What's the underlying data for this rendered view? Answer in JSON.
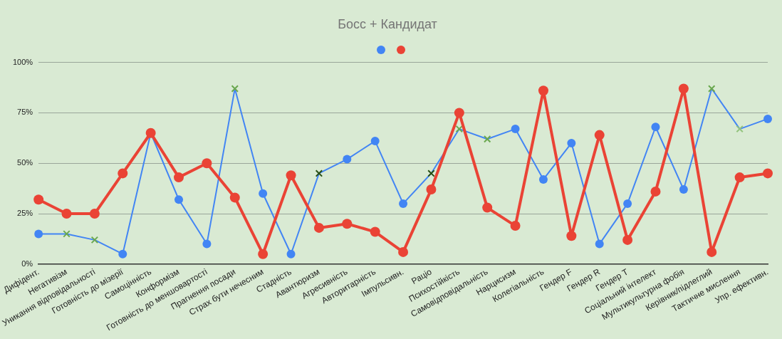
{
  "chart_data": {
    "type": "line",
    "title": "Босс + Кандидат",
    "categories": [
      "Дифідент.",
      "Негативізм",
      "Уникання відповідальності",
      "Готовність до мізерії",
      "Самоцінність",
      "Конформізм",
      "Готовність до меншовартості",
      "Прагнення посади",
      "Страх бути нечесним",
      "Стадність",
      "Авантюризм",
      "Агресивність",
      "Авторитарність",
      "Імпульсивн.",
      "Раціо",
      "Психостійкість",
      "Самовідповідальність",
      "Нарцисизм",
      "Колегіальність",
      "Гендер F",
      "Гендер R",
      "Гендер T",
      "Соціальний інтелект",
      "Мультикультурна фобія",
      "Керівник/підлеглий",
      "Тактичне мислення",
      "Упр. ефективн."
    ],
    "series": [
      {
        "color": "#4285f4",
        "values": [
          15,
          15,
          12,
          5,
          65,
          32,
          10,
          87,
          35,
          5,
          45,
          52,
          61,
          30,
          45,
          67,
          62,
          67,
          42,
          60,
          10,
          30,
          68,
          37,
          87,
          67,
          72
        ],
        "colors": [
          "#4285f4",
          "#6aa84f",
          "#6aa84f",
          "#4285f4",
          "#4285f4",
          "#4285f4",
          "#4285f4",
          "#6aa84f",
          "#4285f4",
          "#4285f4",
          "#274e13",
          "#4285f4",
          "#4285f4",
          "#4285f4",
          "#274e13",
          "#6aa84f",
          "#6aa84f",
          "#4285f4",
          "#4285f4",
          "#4285f4",
          "#4285f4",
          "#4285f4",
          "#4285f4",
          "#4285f4",
          "#6aa84f",
          "#93c47d",
          "#4285f4"
        ]
      },
      {
        "color": "#ea4335",
        "values": [
          32,
          25,
          25,
          45,
          65,
          43,
          50,
          33,
          5,
          44,
          18,
          20,
          16,
          6,
          37,
          75,
          28,
          19,
          86,
          14,
          64,
          12,
          36,
          87,
          6,
          43,
          45
        ]
      }
    ],
    "ylim": [
      0,
      100
    ],
    "yticks": [
      {
        "value": 0,
        "label": "0%"
      },
      {
        "value": 25,
        "label": "25%"
      },
      {
        "value": 50,
        "label": "50%"
      },
      {
        "value": 75,
        "label": "75%"
      },
      {
        "value": 100,
        "label": "100%"
      }
    ],
    "grid": "y",
    "marker": "circle",
    "line_style": "solid"
  }
}
